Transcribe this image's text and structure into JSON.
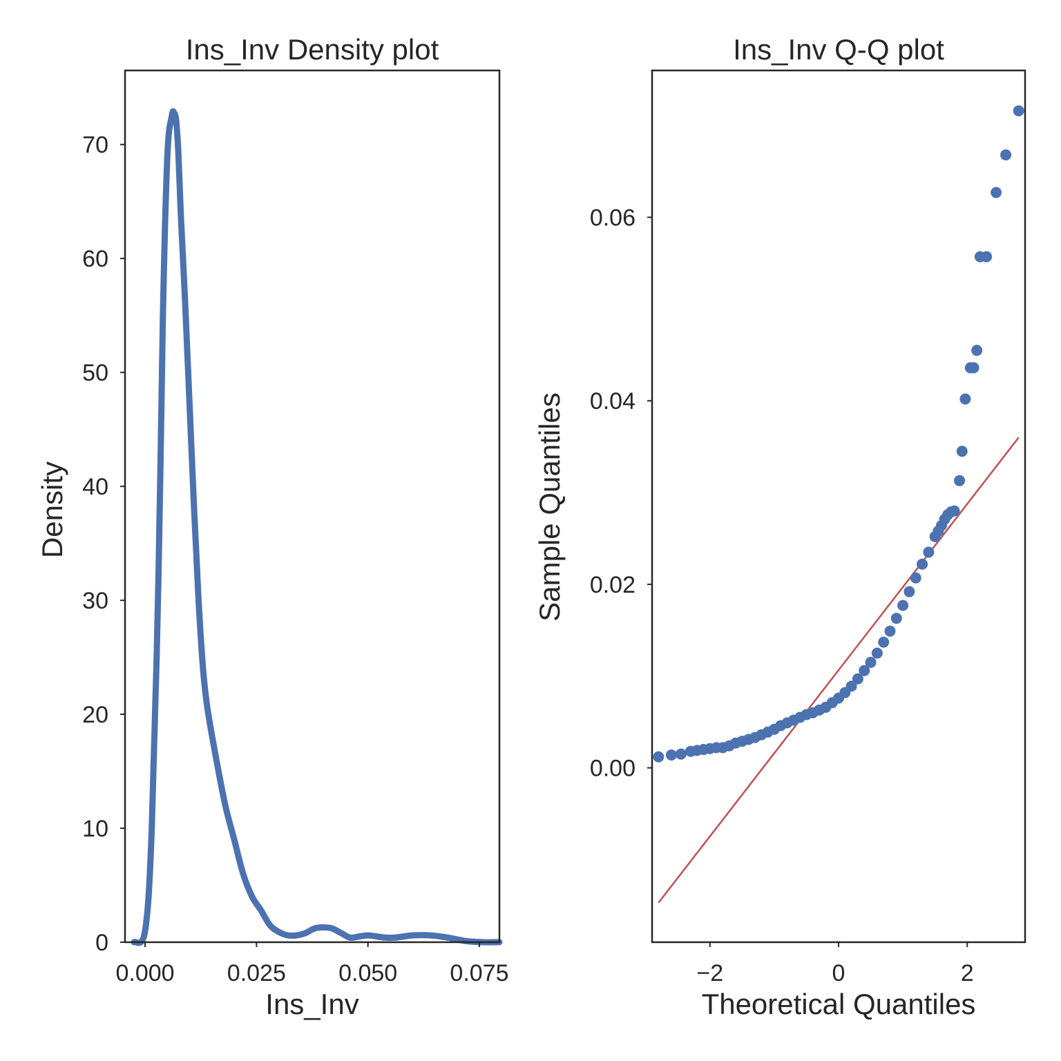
{
  "chart_data": [
    {
      "type": "line",
      "title": "Ins_Inv Density plot",
      "xlabel": "Ins_Inv",
      "ylabel": "Density",
      "xlim": [
        -0.0045,
        0.0795
      ],
      "ylim": [
        0,
        76.5
      ],
      "xticks": [
        0.0,
        0.025,
        0.05,
        0.075
      ],
      "xtick_labels": [
        "0.000",
        "0.025",
        "0.050",
        "0.075"
      ],
      "yticks": [
        0,
        10,
        20,
        30,
        40,
        50,
        60,
        70
      ],
      "ytick_labels": [
        "0",
        "10",
        "20",
        "30",
        "40",
        "50",
        "60",
        "70"
      ],
      "grid": false,
      "series": [
        {
          "color": "#4c72b0",
          "x": [
            -0.0025,
            0.0,
            0.0015,
            0.003,
            0.004,
            0.005,
            0.006,
            0.0065,
            0.007,
            0.0075,
            0.008,
            0.009,
            0.01,
            0.011,
            0.012,
            0.013,
            0.014,
            0.016,
            0.018,
            0.02,
            0.022,
            0.024,
            0.026,
            0.028,
            0.03,
            0.032,
            0.034,
            0.036,
            0.038,
            0.04,
            0.042,
            0.044,
            0.046,
            0.048,
            0.05,
            0.052,
            0.054,
            0.056,
            0.058,
            0.06,
            0.064,
            0.068,
            0.072,
            0.076,
            0.0795
          ],
          "y": [
            0.0,
            1.0,
            10.0,
            32.0,
            55.0,
            69.0,
            72.5,
            72.8,
            72.0,
            69.0,
            64.0,
            56.0,
            47.0,
            38.0,
            30.0,
            24.0,
            20.5,
            16.0,
            12.0,
            9.0,
            6.0,
            4.0,
            2.8,
            1.5,
            0.9,
            0.6,
            0.6,
            0.8,
            1.2,
            1.3,
            1.2,
            0.8,
            0.4,
            0.5,
            0.6,
            0.5,
            0.4,
            0.4,
            0.5,
            0.6,
            0.6,
            0.4,
            0.1,
            0.0,
            0.0
          ]
        }
      ]
    },
    {
      "type": "scatter",
      "title": "Ins_Inv Q-Q plot",
      "xlabel": "Theoretical Quantiles",
      "ylabel": "Sample Quantiles",
      "xlim": [
        -2.9,
        2.9
      ],
      "ylim": [
        -0.019,
        0.076
      ],
      "xticks": [
        -2,
        0,
        2
      ],
      "xtick_labels": [
        "−2",
        "0",
        "2"
      ],
      "yticks": [
        0.0,
        0.02,
        0.04,
        0.06
      ],
      "ytick_labels": [
        "0.00",
        "0.02",
        "0.04",
        "0.06"
      ],
      "grid": false,
      "reference_line": {
        "color": "#c44e52",
        "x": [
          -2.8,
          2.8
        ],
        "y": [
          -0.0147,
          0.036
        ]
      },
      "series": [
        {
          "color": "#4c72b0",
          "x": [
            -2.8,
            -2.6,
            -2.45,
            -2.3,
            -2.2,
            -2.1,
            -2.0,
            -1.9,
            -1.8,
            -1.7,
            -1.6,
            -1.5,
            -1.4,
            -1.3,
            -1.2,
            -1.1,
            -1.0,
            -0.9,
            -0.8,
            -0.7,
            -0.6,
            -0.5,
            -0.4,
            -0.3,
            -0.2,
            -0.1,
            0.0,
            0.1,
            0.2,
            0.3,
            0.4,
            0.5,
            0.6,
            0.7,
            0.8,
            0.9,
            1.0,
            1.1,
            1.2,
            1.3,
            1.4,
            1.5,
            1.55,
            1.6,
            1.65,
            1.7,
            1.75,
            1.8,
            1.88,
            1.92,
            1.97,
            2.05,
            2.1,
            2.15,
            2.2,
            2.3,
            2.45,
            2.6,
            2.8
          ],
          "y": [
            0.0012,
            0.0014,
            0.0015,
            0.0018,
            0.0019,
            0.002,
            0.0021,
            0.0022,
            0.0022,
            0.0024,
            0.0027,
            0.0029,
            0.0031,
            0.0033,
            0.0036,
            0.0039,
            0.0042,
            0.0046,
            0.0049,
            0.0052,
            0.0055,
            0.0058,
            0.006,
            0.0063,
            0.0066,
            0.0071,
            0.0076,
            0.0082,
            0.0089,
            0.0097,
            0.0106,
            0.0115,
            0.0125,
            0.0137,
            0.0149,
            0.0163,
            0.0177,
            0.0192,
            0.0207,
            0.0222,
            0.0235,
            0.0252,
            0.0258,
            0.0264,
            0.0271,
            0.0276,
            0.0279,
            0.028,
            0.0313,
            0.0345,
            0.0402,
            0.0436,
            0.0436,
            0.0455,
            0.0557,
            0.0557,
            0.0627,
            0.0668,
            0.0716
          ]
        }
      ]
    }
  ]
}
